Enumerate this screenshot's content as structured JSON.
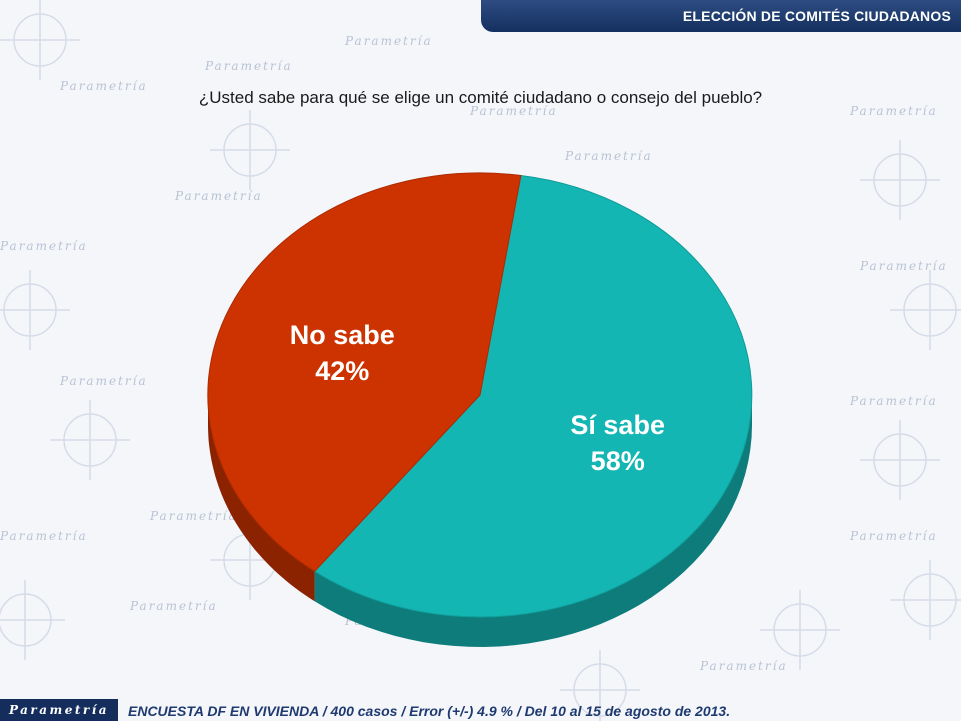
{
  "header": {
    "title": "ELECCIÓN DE COMITÉS CIUDADANOS"
  },
  "question": "¿Usted sabe para qué se elige un comité ciudadano o consejo del pueblo?",
  "watermark": {
    "text": "Parametría"
  },
  "chart_data": {
    "type": "pie",
    "title": "¿Usted sabe para qué se elige un comité ciudadano o consejo del pueblo?",
    "slices": [
      {
        "label": "Sí sabe",
        "value": 58,
        "display": "58%",
        "color": "#13b6b3"
      },
      {
        "label": "No sabe",
        "value": 42,
        "display": "42%",
        "color": "#cc3300"
      }
    ],
    "legend": "none",
    "style": "3d"
  },
  "footer": {
    "logo": "Parametría",
    "source": "ENCUESTA DF EN VIVIENDA / 400 casos / Error (+/-) 4.9 % / Del 10 al 15 de agosto de 2013."
  }
}
